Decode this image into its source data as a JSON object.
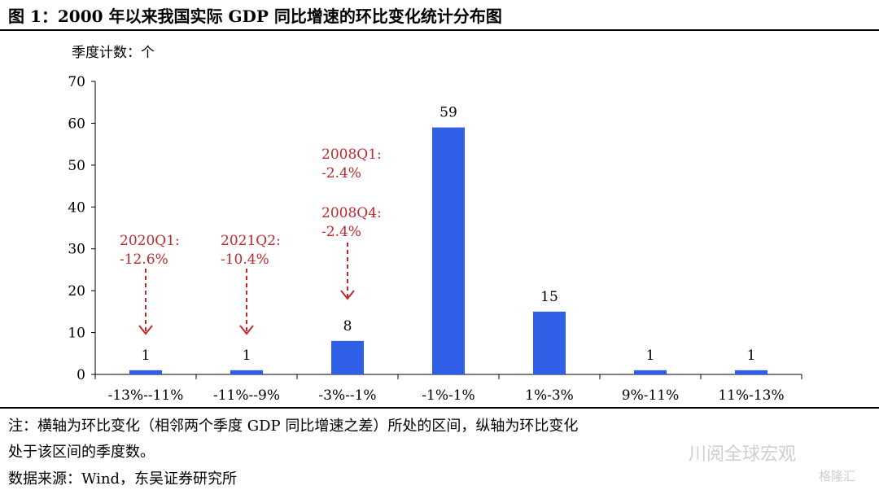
{
  "figure": {
    "title": "图 1：2000 年以来我国实际 GDP 同比增速的环比变化统计分布图",
    "note_line1": "注：横轴为环比变化（相邻两个季度 GDP 同比增速之差）所处的区间，纵轴为环比变化",
    "note_line2": "处于该区间的季度数。",
    "source": "数据来源：Wind，东吴证券研究所",
    "watermark": "川阅全球宏观",
    "corner_logo": "格隆汇"
  },
  "chart_data": {
    "type": "bar",
    "ylabel": "季度计数：个",
    "xlabel": "",
    "ylim": [
      0,
      70
    ],
    "yticks": [
      0,
      10,
      20,
      30,
      40,
      50,
      60,
      70
    ],
    "categories": [
      "-13%--11%",
      "-11%--9%",
      "-3%--1%",
      "-1%-1%",
      "1%-3%",
      "9%-11%",
      "11%-13%"
    ],
    "values": [
      1,
      1,
      8,
      59,
      15,
      1,
      1
    ],
    "bar_color": "#2f5fe6",
    "grid": false,
    "annotations": [
      {
        "category": "-13%--11%",
        "lines": [
          "2020Q1:",
          "-12.6%"
        ],
        "color": "#c0282d"
      },
      {
        "category": "-11%--9%",
        "lines": [
          "2021Q2:",
          "-10.4%"
        ],
        "color": "#c0282d"
      },
      {
        "category": "-3%--1%",
        "lines": [
          "2008Q1:",
          "-2.4%",
          "2008Q4:",
          "-2.4%"
        ],
        "color": "#c0282d"
      }
    ]
  }
}
